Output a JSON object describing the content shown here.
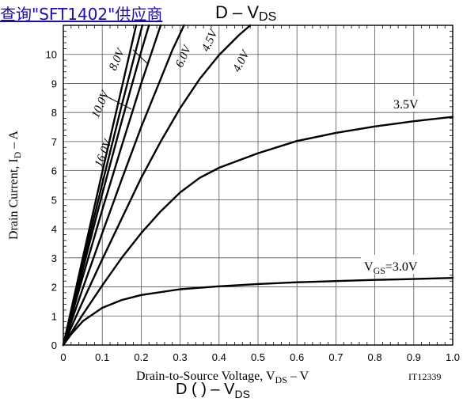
{
  "banner": {
    "text": "查询\"SFT1402\"供应商"
  },
  "title_fragment": {
    "main": "D  –  V",
    "sub": "DS"
  },
  "bottom_fragment": {
    "main": "D  (  )  –  V",
    "sub": "DS"
  },
  "chart_data": {
    "type": "line",
    "xlabel": {
      "main": "Drain-to-Source Voltage, V",
      "sub": "DS",
      "tail": "  –  V"
    },
    "ylabel": {
      "main": "Drain Current, I",
      "sub": "D",
      "tail": "  –  A"
    },
    "code": "IT12339",
    "xlim": [
      0,
      1.0
    ],
    "ylim": [
      0,
      11
    ],
    "xticks": [
      "0",
      "0.1",
      "0.2",
      "0.3",
      "0.4",
      "0.5",
      "0.6",
      "0.7",
      "0.8",
      "0.9",
      "1.0"
    ],
    "yticks": [
      "0",
      "1",
      "2",
      "3",
      "4",
      "5",
      "6",
      "7",
      "8",
      "9",
      "10"
    ],
    "grid": true,
    "series": [
      {
        "name": "VGS=3.0V",
        "label_main": "V",
        "label_sub": "GS",
        "label_tail": "=3.0V",
        "points": [
          [
            0,
            0
          ],
          [
            0.02,
            0.37
          ],
          [
            0.05,
            0.82
          ],
          [
            0.1,
            1.28
          ],
          [
            0.15,
            1.55
          ],
          [
            0.2,
            1.72
          ],
          [
            0.3,
            1.92
          ],
          [
            0.4,
            2.02
          ],
          [
            0.5,
            2.1
          ],
          [
            0.6,
            2.16
          ],
          [
            0.7,
            2.2
          ],
          [
            0.8,
            2.24
          ],
          [
            0.9,
            2.27
          ],
          [
            1.0,
            2.31
          ]
        ]
      },
      {
        "name": "3.5V",
        "label_main": "3.5V",
        "points": [
          [
            0,
            0
          ],
          [
            0.05,
            1.05
          ],
          [
            0.1,
            2.05
          ],
          [
            0.15,
            3.0
          ],
          [
            0.2,
            3.85
          ],
          [
            0.25,
            4.6
          ],
          [
            0.3,
            5.25
          ],
          [
            0.35,
            5.75
          ],
          [
            0.4,
            6.1
          ],
          [
            0.5,
            6.6
          ],
          [
            0.6,
            7.02
          ],
          [
            0.7,
            7.3
          ],
          [
            0.8,
            7.52
          ],
          [
            0.9,
            7.7
          ],
          [
            1.0,
            7.85
          ]
        ]
      },
      {
        "name": "4.0V",
        "label_main": "4.0V",
        "points": [
          [
            0,
            0
          ],
          [
            0.05,
            1.5
          ],
          [
            0.1,
            2.95
          ],
          [
            0.15,
            4.35
          ],
          [
            0.2,
            5.75
          ],
          [
            0.25,
            7.0
          ],
          [
            0.3,
            8.15
          ],
          [
            0.35,
            9.15
          ],
          [
            0.4,
            9.98
          ],
          [
            0.45,
            10.65
          ],
          [
            0.48,
            11.0
          ]
        ]
      },
      {
        "name": "4.5V",
        "label_main": "4.5V",
        "points": [
          [
            0,
            0
          ],
          [
            0.05,
            1.95
          ],
          [
            0.1,
            3.85
          ],
          [
            0.15,
            5.7
          ],
          [
            0.2,
            7.5
          ],
          [
            0.25,
            9.15
          ],
          [
            0.28,
            10.15
          ],
          [
            0.31,
            11.0
          ]
        ]
      },
      {
        "name": "6.0V",
        "label_main": "6.0V",
        "points": [
          [
            0,
            0
          ],
          [
            0.05,
            2.35
          ],
          [
            0.1,
            4.65
          ],
          [
            0.15,
            6.85
          ],
          [
            0.2,
            9.0
          ],
          [
            0.24,
            10.6
          ],
          [
            0.25,
            11.0
          ]
        ]
      },
      {
        "name": "8.0V",
        "label_main": "8.0V",
        "points": [
          [
            0,
            0
          ],
          [
            0.05,
            2.6
          ],
          [
            0.1,
            5.2
          ],
          [
            0.15,
            7.7
          ],
          [
            0.2,
            10.1
          ],
          [
            0.22,
            11.0
          ]
        ]
      },
      {
        "name": "10.0V",
        "label_main": "10.0V",
        "points": [
          [
            0,
            0
          ],
          [
            0.05,
            2.8
          ],
          [
            0.1,
            5.55
          ],
          [
            0.15,
            8.25
          ],
          [
            0.2,
            10.85
          ],
          [
            0.203,
            11.0
          ]
        ]
      },
      {
        "name": "16.0V",
        "label_main": "16.0V",
        "points": [
          [
            0,
            0
          ],
          [
            0.05,
            3.0
          ],
          [
            0.1,
            5.95
          ],
          [
            0.15,
            8.85
          ],
          [
            0.187,
            11.0
          ]
        ]
      }
    ]
  }
}
